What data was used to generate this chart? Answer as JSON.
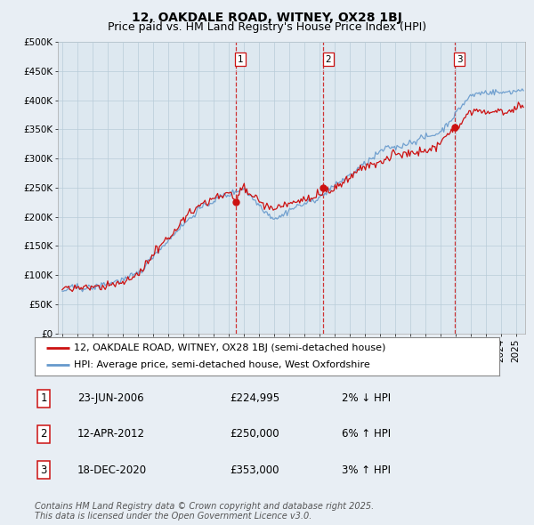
{
  "title": "12, OAKDALE ROAD, WITNEY, OX28 1BJ",
  "subtitle": "Price paid vs. HM Land Registry's House Price Index (HPI)",
  "ylabel_ticks": [
    "£0",
    "£50K",
    "£100K",
    "£150K",
    "£200K",
    "£250K",
    "£300K",
    "£350K",
    "£400K",
    "£450K",
    "£500K"
  ],
  "ytick_vals": [
    0,
    50000,
    100000,
    150000,
    200000,
    250000,
    300000,
    350000,
    400000,
    450000,
    500000
  ],
  "ylim": [
    0,
    500000
  ],
  "xlim_start": 1994.7,
  "xlim_end": 2025.6,
  "background_color": "#e8eef4",
  "plot_bg_color": "#dde8f0",
  "grid_color": "#b8ccd8",
  "red_line_color": "#cc1111",
  "blue_line_color": "#6699cc",
  "transaction_dates": [
    2006.48,
    2012.28,
    2020.96
  ],
  "transaction_prices": [
    224995,
    250000,
    353000
  ],
  "transaction_labels": [
    "1",
    "2",
    "3"
  ],
  "transaction_color": "#cc1111",
  "vline_color": "#cc1111",
  "legend_line1": "12, OAKDALE ROAD, WITNEY, OX28 1BJ (semi-detached house)",
  "legend_line2": "HPI: Average price, semi-detached house, West Oxfordshire",
  "table_data": [
    [
      "1",
      "23-JUN-2006",
      "£224,995",
      "2% ↓ HPI"
    ],
    [
      "2",
      "12-APR-2012",
      "£250,000",
      "6% ↑ HPI"
    ],
    [
      "3",
      "18-DEC-2020",
      "£353,000",
      "3% ↑ HPI"
    ]
  ],
  "footer_text": "Contains HM Land Registry data © Crown copyright and database right 2025.\nThis data is licensed under the Open Government Licence v3.0.",
  "title_fontsize": 10,
  "subtitle_fontsize": 9,
  "tick_fontsize": 7.5,
  "legend_fontsize": 8,
  "table_fontsize": 8.5,
  "footer_fontsize": 7
}
